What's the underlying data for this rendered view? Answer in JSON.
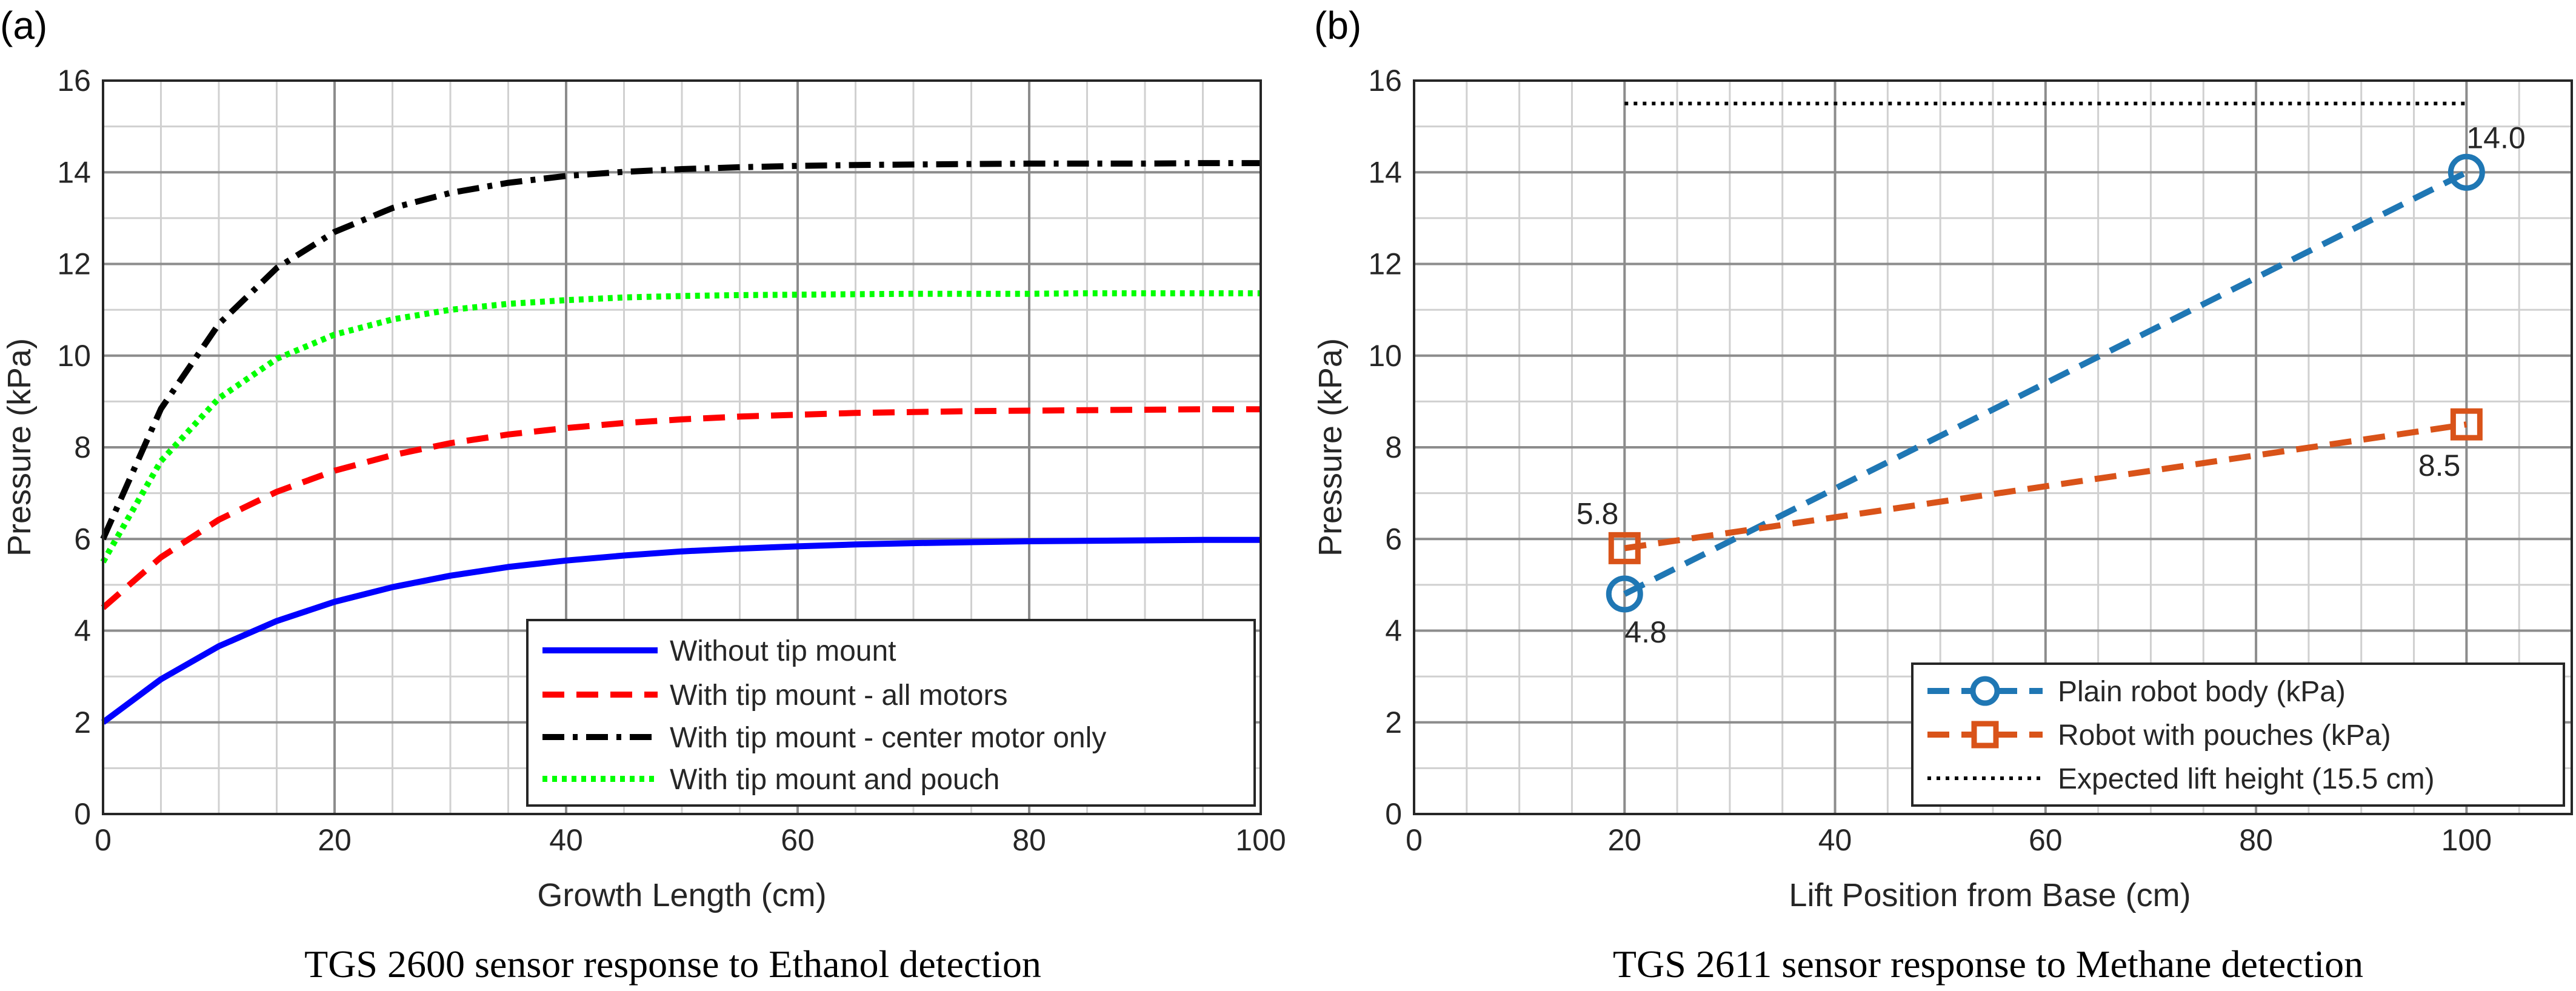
{
  "chart_data": [
    {
      "panel": "(a)",
      "type": "line",
      "caption": "TGS 2600 sensor response to Ethanol detection",
      "xlabel": "Growth Length (cm)",
      "ylabel": "Pressure (kPa)",
      "xlim": [
        0,
        100
      ],
      "ylim": [
        0,
        16
      ],
      "xticks": [
        0,
        20,
        40,
        60,
        80,
        100
      ],
      "yticks": [
        0,
        2,
        4,
        6,
        8,
        10,
        12,
        14,
        16
      ],
      "xtick_labels": [
        "0",
        "20",
        "40",
        "60",
        "80",
        "100"
      ],
      "ytick_labels": [
        "0",
        "2",
        "4",
        "6",
        "8",
        "10",
        "12",
        "14",
        "16"
      ],
      "grid": true,
      "legend_position": "bottom-right",
      "x": [
        0,
        5,
        10,
        15,
        20,
        25,
        30,
        35,
        40,
        45,
        50,
        55,
        60,
        65,
        70,
        75,
        80,
        85,
        90,
        95,
        100
      ],
      "series": [
        {
          "name": "Without tip mount",
          "color": "#0000ff",
          "style": "solid",
          "values": [
            2.0,
            2.94,
            3.66,
            4.21,
            4.63,
            4.95,
            5.2,
            5.39,
            5.53,
            5.64,
            5.73,
            5.79,
            5.84,
            5.88,
            5.91,
            5.93,
            5.95,
            5.96,
            5.97,
            5.98,
            5.98
          ]
        },
        {
          "name": "With tip mount - all motors",
          "color": "#ff0000",
          "style": "dashed",
          "values": [
            4.5,
            5.6,
            6.42,
            7.03,
            7.49,
            7.83,
            8.09,
            8.28,
            8.42,
            8.53,
            8.61,
            8.67,
            8.71,
            8.75,
            8.77,
            8.79,
            8.8,
            8.81,
            8.82,
            8.83,
            8.83
          ]
        },
        {
          "name": "With tip mount - center motor only",
          "color": "#000000",
          "style": "dashdot",
          "values": [
            6.0,
            8.84,
            10.69,
            11.91,
            12.7,
            13.22,
            13.55,
            13.77,
            13.92,
            14.01,
            14.07,
            14.11,
            14.14,
            14.16,
            14.17,
            14.18,
            14.19,
            14.19,
            14.19,
            14.2,
            14.2
          ]
        },
        {
          "name": "With tip mount and pouch",
          "color": "#00ff00",
          "style": "dotted",
          "values": [
            5.5,
            7.7,
            9.07,
            9.93,
            10.46,
            10.79,
            11.0,
            11.13,
            11.21,
            11.27,
            11.3,
            11.32,
            11.33,
            11.34,
            11.35,
            11.35,
            11.35,
            11.36,
            11.36,
            11.36,
            11.36
          ]
        }
      ]
    },
    {
      "panel": "(b)",
      "type": "line",
      "caption": "TGS 2611 sensor response to Methane detection",
      "xlabel": "Lift Position from Base (cm)",
      "ylabel": "Pressure (kPa)",
      "xlim": [
        0,
        110
      ],
      "ylim": [
        0,
        16
      ],
      "xticks": [
        0,
        20,
        40,
        60,
        80,
        100
      ],
      "yticks": [
        0,
        2,
        4,
        6,
        8,
        10,
        12,
        14,
        16
      ],
      "xtick_labels": [
        "0",
        "20",
        "40",
        "60",
        "80",
        "100"
      ],
      "ytick_labels": [
        "0",
        "2",
        "4",
        "6",
        "8",
        "10",
        "12",
        "14",
        "16"
      ],
      "grid": true,
      "legend_position": "bottom-right",
      "series": [
        {
          "name": "Plain robot body (kPa)",
          "color": "#1f77b4",
          "style": "dashed",
          "marker": "circle",
          "x": [
            20,
            100
          ],
          "values": [
            4.8,
            14.0
          ],
          "labels": [
            "4.8",
            "14.0"
          ]
        },
        {
          "name": "Robot with pouches (kPa)",
          "color": "#d95319",
          "style": "dashed",
          "marker": "square",
          "x": [
            20,
            100
          ],
          "values": [
            5.8,
            8.5
          ],
          "labels": [
            "5.8",
            "8.5"
          ]
        },
        {
          "name": "Expected lift height (15.5 cm)",
          "color": "#000000",
          "style": "dotted",
          "x": [
            20,
            100
          ],
          "values": [
            15.5,
            15.5
          ]
        }
      ]
    }
  ]
}
